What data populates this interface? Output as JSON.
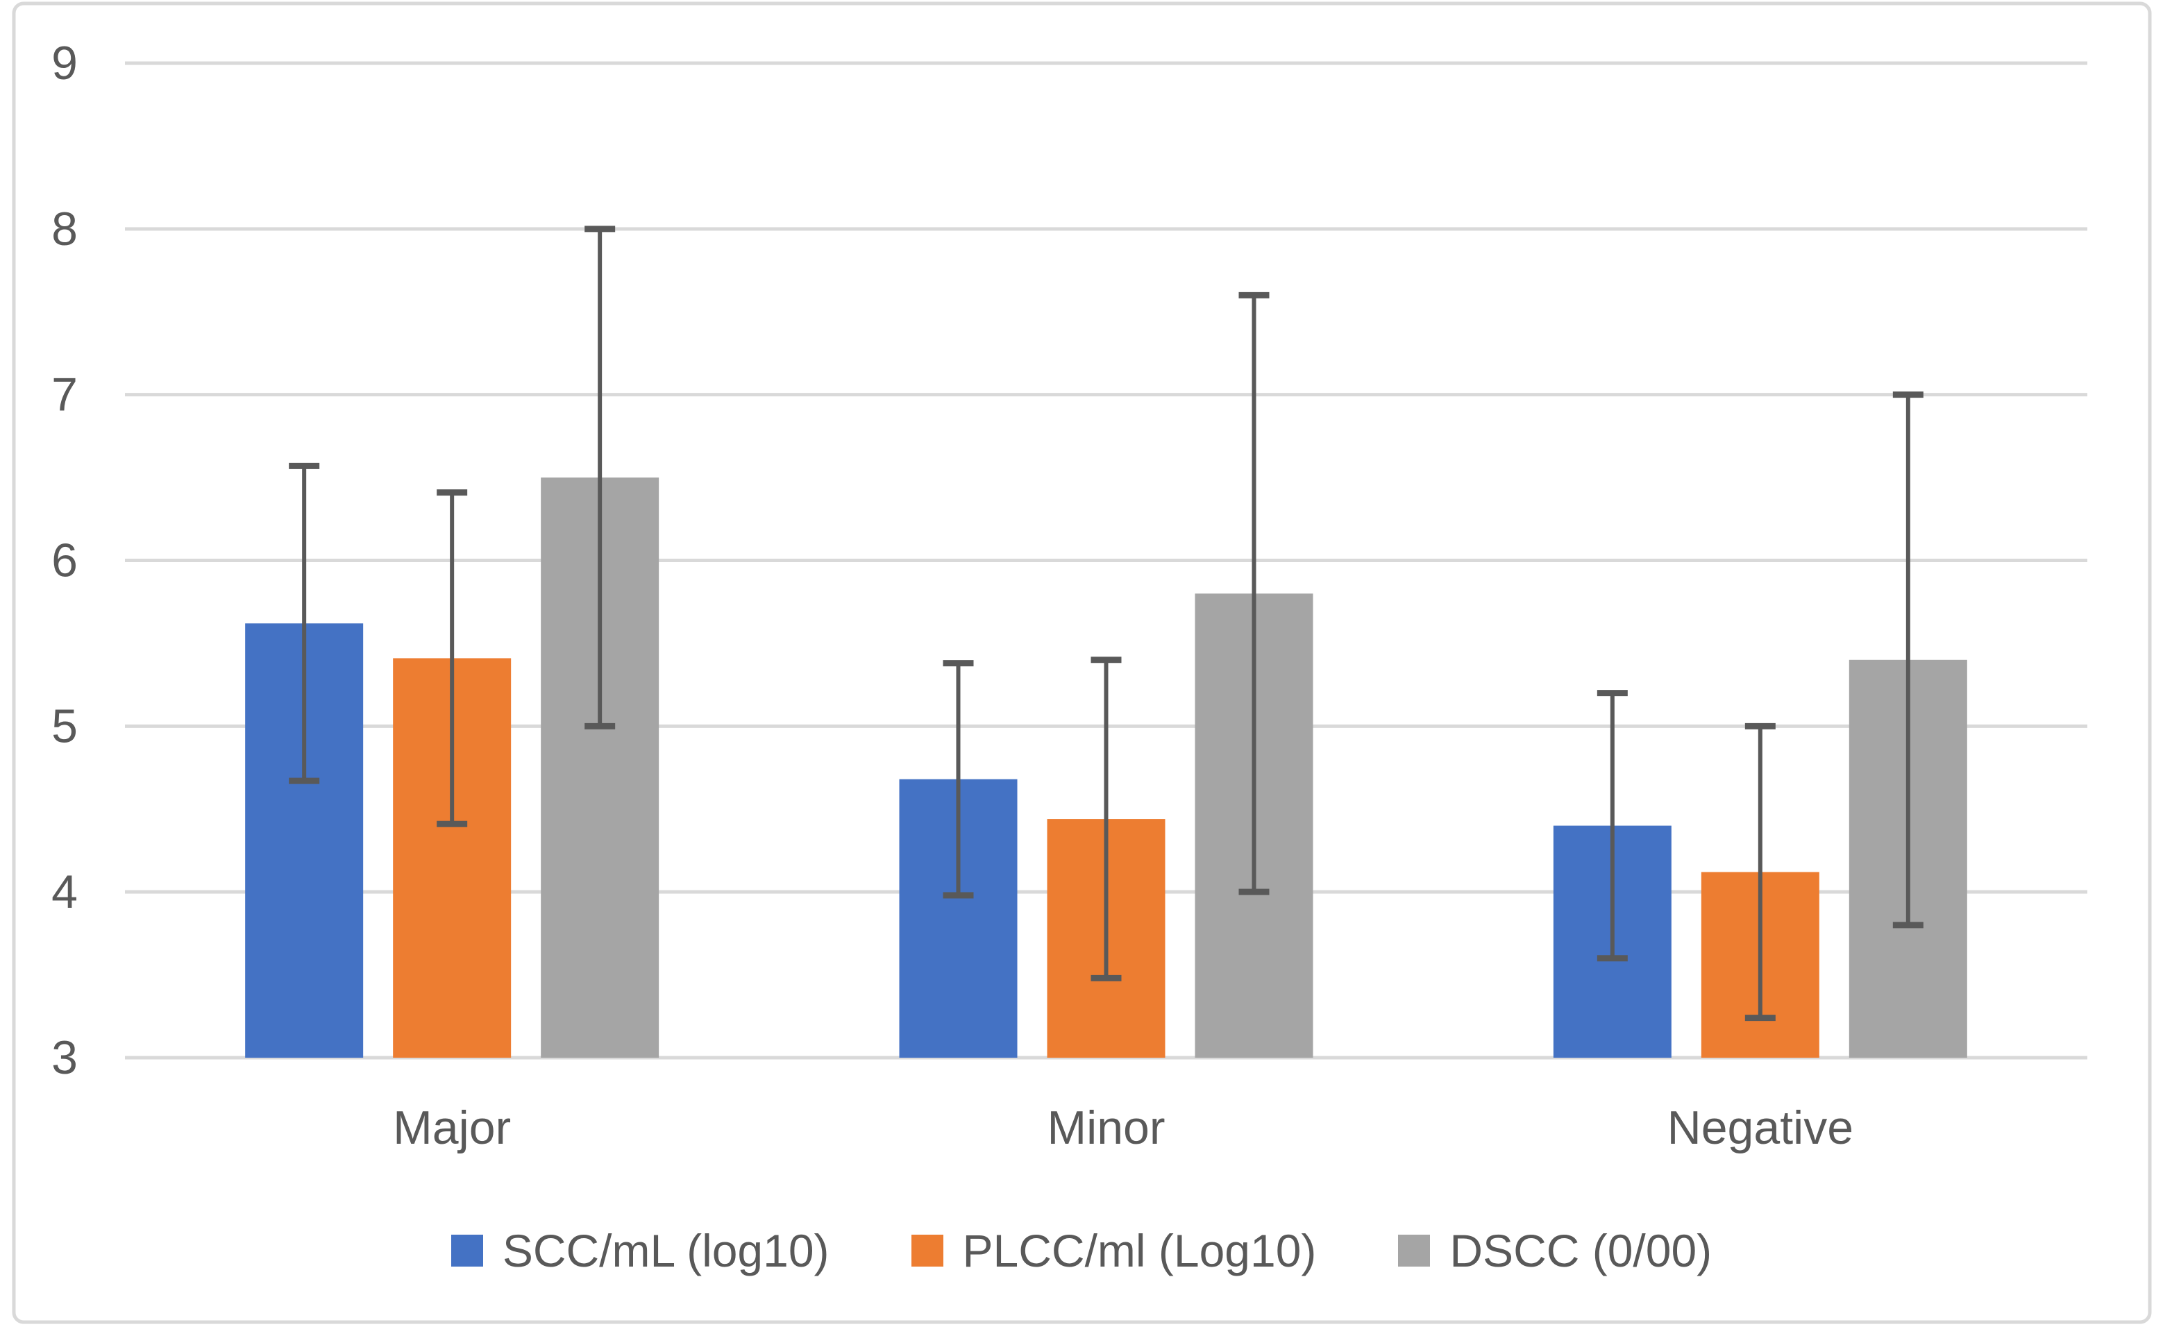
{
  "chart_data": {
    "type": "bar",
    "title": "",
    "xlabel": "",
    "ylabel": "",
    "categories": [
      "Major",
      "Minor",
      "Negative"
    ],
    "series": [
      {
        "name": "SCC/mL (log10)",
        "color": "#4472C4",
        "values": [
          5.62,
          4.68,
          4.4
        ],
        "errors": [
          0.95,
          0.7,
          0.8
        ]
      },
      {
        "name": "PLCC/ml (Log10)",
        "color": "#ED7D31",
        "values": [
          5.41,
          4.44,
          4.12
        ],
        "errors": [
          1.0,
          0.96,
          0.88
        ]
      },
      {
        "name": "DSCC (0/00)",
        "color": "#A5A5A5",
        "values": [
          6.5,
          5.8,
          5.4
        ],
        "errors": [
          1.5,
          1.8,
          1.6
        ]
      }
    ],
    "ylim": [
      3,
      9
    ],
    "yticks": [
      9,
      8,
      7,
      6,
      5,
      4,
      3
    ],
    "grid": true,
    "legend_position": "bottom",
    "error_bars": true
  },
  "styles": {
    "background": "#FFFFFF",
    "frame_border": "#D9D9D9",
    "gridline": "#D9D9D9",
    "axis_line": "#D9D9D9",
    "tick_text": "#595959",
    "category_text": "#595959",
    "legend_text": "#595959",
    "error_bar": "#595959"
  }
}
